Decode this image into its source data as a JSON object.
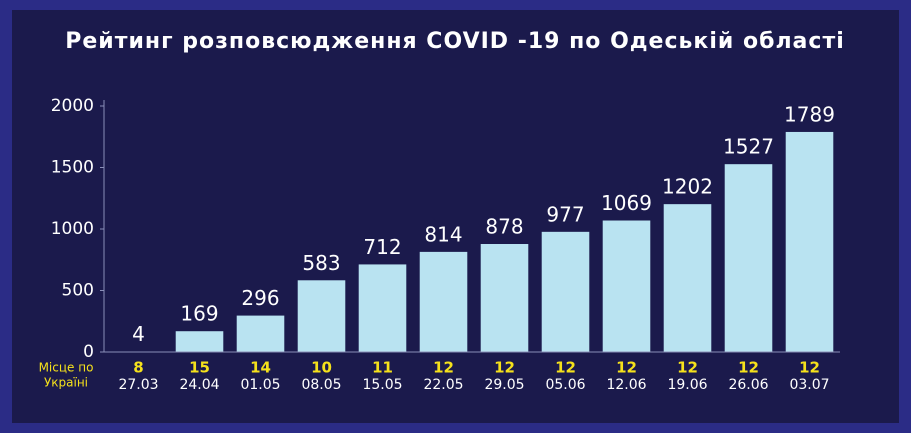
{
  "chart_data": {
    "type": "bar",
    "title": "Рейтинг розповсюдження COVID -19 по Одеській області",
    "categories": [
      "27.03",
      "24.04",
      "01.05",
      "08.05",
      "15.05",
      "22.05",
      "29.05",
      "05.06",
      "12.06",
      "19.06",
      "26.06",
      "03.07"
    ],
    "values": [
      4,
      169,
      296,
      583,
      712,
      814,
      878,
      977,
      1069,
      1202,
      1527,
      1789
    ],
    "color": "#b9e3f1",
    "ylim": [
      0,
      2000
    ],
    "yticks": [
      0,
      500,
      1000,
      1500,
      2000
    ],
    "rank_label": [
      "Місце по",
      "Україні"
    ],
    "ranks": [
      8,
      15,
      14,
      10,
      11,
      12,
      12,
      12,
      12,
      12,
      12,
      12
    ]
  }
}
